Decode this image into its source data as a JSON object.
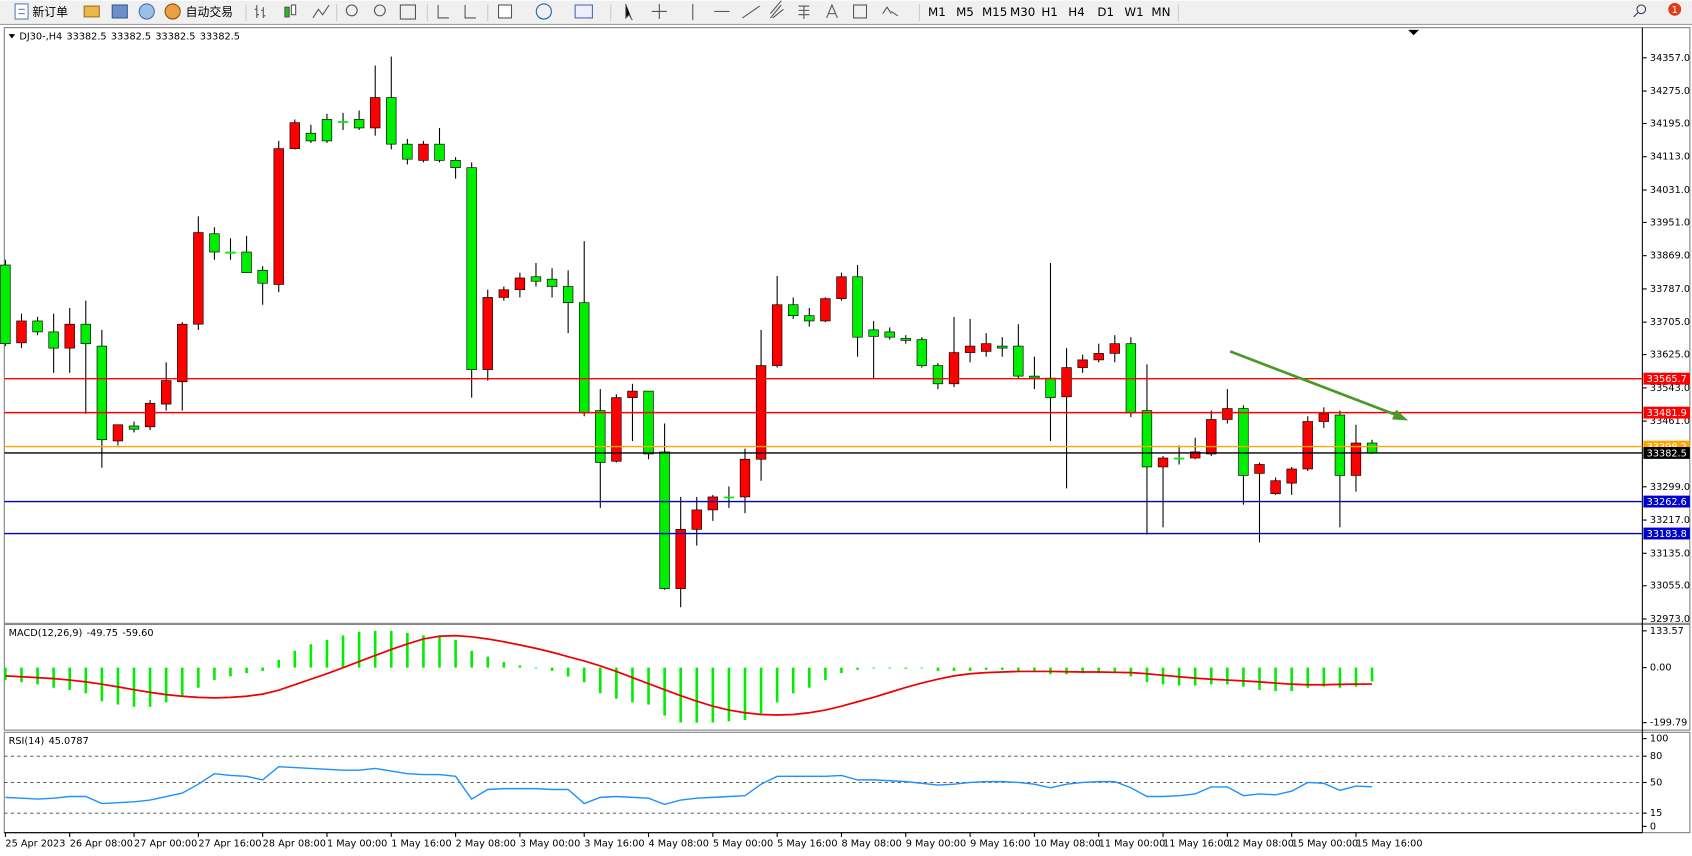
{
  "toolbar": {
    "buttons": [
      "新订单",
      "自动交易"
    ],
    "timeframes": [
      "M1",
      "M5",
      "M15",
      "M30",
      "H1",
      "H4",
      "D1",
      "W1",
      "MN"
    ],
    "badge": 1
  },
  "chart_data": [
    {
      "type": "candlestick",
      "symbol": "DJ30-,H4",
      "quote": [
        33382.5,
        33382.5,
        33382.5,
        33382.5
      ],
      "up_color": "#ff0000",
      "down_color": "#00ee00",
      "categories": [
        "25 Apr 2023",
        null,
        null,
        null,
        "26 Apr 08:00",
        null,
        null,
        null,
        "27 Apr 00:00",
        null,
        null,
        null,
        "27 Apr 16:00",
        null,
        null,
        null,
        "28 Apr 08:00",
        null,
        null,
        null,
        "1 May 00:00",
        null,
        null,
        null,
        "1 May 16:00",
        null,
        null,
        null,
        "2 May 08:00",
        null,
        null,
        null,
        "3 May 00:00",
        null,
        null,
        null,
        "3 May 16:00",
        null,
        null,
        null,
        "4 May 08:00",
        null,
        null,
        null,
        "5 May 00:00",
        null,
        null,
        null,
        "5 May 16:00",
        null,
        null,
        null,
        "8 May 08:00",
        null,
        null,
        null,
        "9 May 00:00",
        null,
        null,
        null,
        "9 May 16:00",
        null,
        null,
        null,
        "10 May 08:00",
        null,
        null,
        null,
        "11 May 00:00",
        null,
        null,
        null,
        "11 May 16:00",
        null,
        null,
        null,
        "12 May 08:00",
        null,
        null,
        null,
        "15 May 00:00",
        null,
        null,
        null,
        "15 May 16:00",
        null
      ],
      "open": [
        33846,
        33654,
        33708,
        33681,
        33641,
        33700,
        33646,
        33412,
        33449,
        33447,
        33503,
        33558,
        33700,
        33923,
        33878,
        33878,
        33833,
        33798,
        34133,
        34171,
        34205,
        34200,
        34205,
        34184,
        34259,
        34144,
        34104,
        34144,
        34104,
        34086,
        33588,
        33766,
        33785,
        33817,
        33811,
        33793,
        33753,
        33487,
        33362,
        33519,
        33535,
        33385,
        33048,
        33194,
        33242,
        33274,
        33274,
        33367,
        33598,
        33748,
        33721,
        33708,
        33763,
        33817,
        33686,
        33681,
        33665,
        33662,
        33598,
        33553,
        33630,
        33633,
        33646,
        33646,
        33572,
        33567,
        33521,
        33593,
        33612,
        33628,
        33652,
        33487,
        33348,
        33370,
        33370,
        33380,
        33465,
        33492,
        33332,
        33282,
        33308,
        33343,
        33460,
        33476,
        33327,
        33407
      ],
      "high": [
        33859,
        33726,
        33718,
        33726,
        33740,
        33758,
        33686,
        33452,
        33460,
        33513,
        33606,
        33705,
        33966,
        33939,
        33912,
        33918,
        33843,
        34152,
        34205,
        34192,
        34219,
        34221,
        34227,
        34338,
        34360,
        34157,
        34152,
        34184,
        34112,
        34099,
        33785,
        33793,
        33827,
        33851,
        33838,
        33833,
        33905,
        33540,
        33527,
        33553,
        33535,
        33455,
        33274,
        33274,
        33279,
        33300,
        33393,
        33686,
        33819,
        33766,
        33740,
        33766,
        33827,
        33846,
        33708,
        33692,
        33673,
        33668,
        33604,
        33718,
        33713,
        33678,
        33668,
        33700,
        33620,
        33851,
        33641,
        33625,
        33652,
        33673,
        33668,
        33601,
        33375,
        33401,
        33420,
        33487,
        33540,
        33500,
        33359,
        33322,
        33348,
        33473,
        33495,
        33487,
        33452,
        33415
      ],
      "low": [
        33646,
        33641,
        33673,
        33580,
        33580,
        33479,
        33346,
        33401,
        33433,
        33439,
        33487,
        33487,
        33686,
        33859,
        33859,
        33827,
        33748,
        33779,
        34131,
        34147,
        34147,
        34179,
        34179,
        34165,
        34131,
        34094,
        34099,
        34099,
        34059,
        33519,
        33561,
        33758,
        33766,
        33793,
        33766,
        33678,
        33473,
        33247,
        33359,
        33412,
        33367,
        33045,
        33002,
        33154,
        33215,
        33247,
        33234,
        33314,
        33593,
        33713,
        33694,
        33705,
        33758,
        33620,
        33567,
        33662,
        33652,
        33593,
        33540,
        33545,
        33606,
        33620,
        33620,
        33567,
        33540,
        33412,
        33295,
        33580,
        33606,
        33606,
        33471,
        33181,
        33199,
        33354,
        33367,
        33375,
        33455,
        33255,
        33162,
        33279,
        33279,
        33338,
        33444,
        33199,
        33287,
        33380
      ],
      "close": [
        33652,
        33708,
        33681,
        33641,
        33700,
        33652,
        33415,
        33452,
        33441,
        33505,
        33561,
        33700,
        33926,
        33878,
        33875,
        33827,
        33801,
        34133,
        34197,
        34152,
        34152,
        34200,
        34184,
        34259,
        34144,
        34107,
        34144,
        34104,
        34086,
        33588,
        33766,
        33785,
        33814,
        33806,
        33793,
        33753,
        33481,
        33359,
        33519,
        33535,
        33380,
        33048,
        33194,
        33242,
        33274,
        33274,
        33367,
        33598,
        33748,
        33721,
        33708,
        33763,
        33817,
        33668,
        33670,
        33668,
        33660,
        33598,
        33553,
        33630,
        33646,
        33652,
        33641,
        33572,
        33567,
        33519,
        33593,
        33612,
        33628,
        33652,
        33481,
        33348,
        33370,
        33370,
        33385,
        33465,
        33492,
        33327,
        33354,
        33314,
        33343,
        33460,
        33479,
        33327,
        33407,
        33382.5
      ],
      "levels": [
        {
          "value": 33565.7,
          "color": "#ff0000"
        },
        {
          "value": 33481.9,
          "color": "#ff0000"
        },
        {
          "value": 33398.2,
          "color": "#ffa500"
        },
        {
          "value": 33382.5,
          "color": "#000000"
        },
        {
          "value": 33262.6,
          "color": "#0000cc"
        },
        {
          "value": 33183.8,
          "color": "#0000cc"
        }
      ],
      "ylim": [
        32965,
        34426
      ],
      "yticks": [
        {
          "value": 34357,
          "label": "34357.0"
        },
        {
          "value": 34275,
          "label": "34275.0"
        },
        {
          "value": 34195,
          "label": "34195.0"
        },
        {
          "value": 34113,
          "label": "34113.0"
        },
        {
          "value": 34031,
          "label": "34031.0"
        },
        {
          "value": 33951,
          "label": "33951.0"
        },
        {
          "value": 33869,
          "label": "33869.0"
        },
        {
          "value": 33787,
          "label": "33787.0"
        },
        {
          "value": 33705,
          "label": "33705.0"
        },
        {
          "value": 33625,
          "label": "33625.0"
        },
        {
          "value": 33543,
          "label": "33543.0"
        },
        {
          "value": 33461,
          "label": "33461.0"
        },
        {
          "value": 33299,
          "label": "33299.0"
        },
        {
          "value": 33217,
          "label": "33217.0"
        },
        {
          "value": 33135,
          "label": "33135.0"
        },
        {
          "value": 33055,
          "label": "33055.0"
        },
        {
          "value": 32973,
          "label": "32973.0"
        }
      ]
    },
    {
      "type": "macd",
      "title": "MACD(12,26,9)",
      "readout": [
        -49.75,
        {
          "value": -59.6,
          "label": "-59.60"
        }
      ],
      "color": "#00ee00",
      "signal_color": "#ee0000",
      "values": [
        -45,
        -53,
        -61,
        -73,
        -81,
        -93,
        -122,
        -134,
        -142,
        -142,
        -126,
        -105,
        -73,
        -45,
        -32,
        -20,
        -12,
        28,
        61,
        85,
        101,
        117,
        130,
        133,
        133,
        126,
        117,
        117,
        101,
        61,
        40,
        20,
        8,
        0,
        -12,
        -32,
        -53,
        -93,
        -113,
        -126,
        -134,
        -174,
        -199,
        -199.79,
        -199,
        -195,
        -190,
        -166,
        -126,
        -93,
        -73,
        -45,
        -20,
        -8,
        0,
        0,
        -4,
        0,
        -12,
        -12,
        -12,
        -8,
        -8,
        -12,
        -16,
        -24,
        -24,
        -20,
        -20,
        -20,
        -32,
        -53,
        -61,
        -65,
        -65,
        -61,
        -61,
        -69,
        -81,
        -85,
        -85,
        -73,
        -69,
        -73,
        -69,
        -49.75
      ],
      "signal": [
        -30,
        -33,
        -36,
        -40,
        -45,
        -52,
        -60,
        -70,
        -80,
        -90,
        -98,
        -104,
        -108,
        -110,
        -108,
        -104,
        -96,
        -82,
        -62,
        -42,
        -22,
        0,
        22,
        44,
        66,
        86,
        104,
        114,
        116,
        112,
        104,
        94,
        82,
        70,
        56,
        40,
        24,
        6,
        -14,
        -36,
        -58,
        -80,
        -102,
        -122,
        -140,
        -154,
        -164,
        -170,
        -172,
        -170,
        -164,
        -154,
        -140,
        -124,
        -108,
        -90,
        -72,
        -56,
        -42,
        -30,
        -22,
        -18,
        -16,
        -14,
        -14,
        -14,
        -15,
        -16,
        -16,
        -17,
        -18,
        -22,
        -28,
        -33,
        -38,
        -42,
        -45,
        -48,
        -52,
        -56,
        -60,
        -62,
        -62,
        -61,
        -60,
        -59.6
      ],
      "ylim": [
        -223,
        153
      ],
      "yticks": [
        133.57,
        {
          "value": 0,
          "label": "0.00"
        },
        -199.79
      ]
    },
    {
      "type": "line",
      "title": "RSI(14)",
      "readout": [
        45.0787
      ],
      "color": "#1e90ff",
      "grid": "dashed",
      "values": [
        33,
        32,
        31,
        32,
        34,
        34,
        26,
        27,
        28,
        30,
        34,
        38,
        48,
        60,
        58,
        57,
        53,
        68,
        67,
        66,
        65,
        64,
        64,
        66,
        63,
        60,
        59,
        59,
        57,
        31,
        42,
        43,
        43,
        43,
        42,
        42,
        26,
        33,
        34,
        33,
        32,
        25,
        30,
        32,
        33,
        34,
        35,
        48,
        57,
        57,
        57,
        57,
        58,
        53,
        53,
        52,
        51,
        49,
        47,
        48,
        50,
        51,
        51,
        50,
        48,
        44,
        48,
        50,
        51,
        51,
        44,
        34,
        34,
        35,
        37,
        45,
        45,
        35,
        37,
        36,
        40,
        50,
        49,
        41,
        46,
        45.0787
      ],
      "ylim": [
        -6,
        106
      ],
      "yticks": [
        100,
        80,
        50,
        15,
        0
      ]
    }
  ]
}
